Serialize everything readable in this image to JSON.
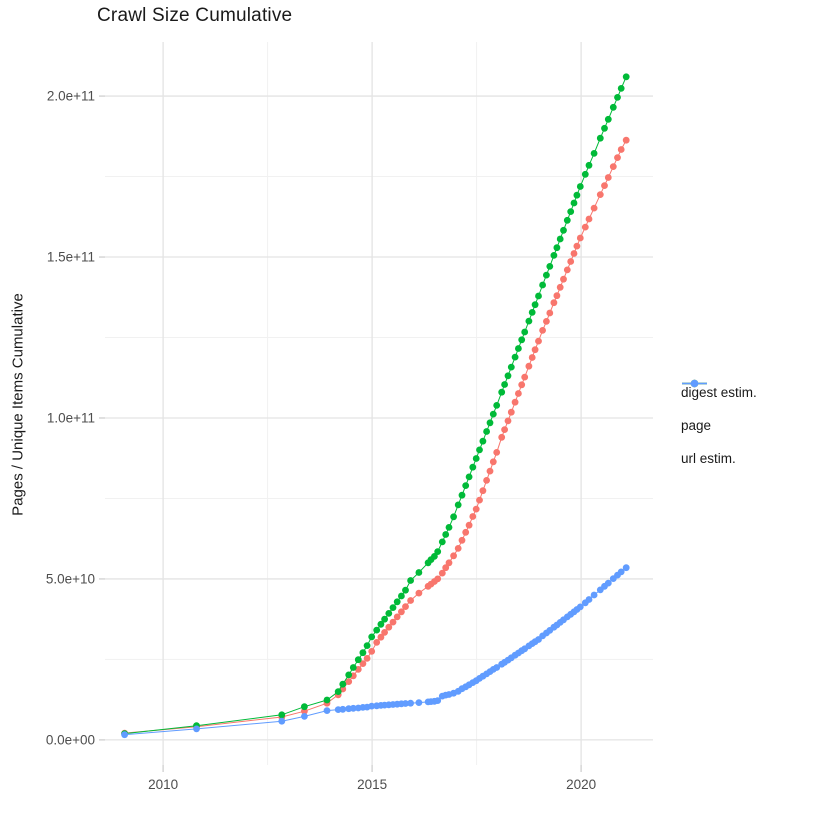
{
  "chart_data": {
    "type": "scatter",
    "title": "Crawl Size Cumulative",
    "xlabel": "",
    "ylabel": "Pages / Unique Items Cumulative",
    "legend_position": "right",
    "grid": {
      "major_color": "#e4e4e4",
      "minor_color": "#f1f1f1",
      "tick_color": "#cfcfcf",
      "axis_text_color": "#4d4d4d"
    },
    "value_scale_note": "values stored in billions (1e9 items)",
    "xlim": [
      2008.61,
      2021.72
    ],
    "ylim": [
      -7.8,
      216.8
    ],
    "x_ticks": [
      {
        "v": 2010,
        "label": "2010"
      },
      {
        "v": 2015,
        "label": "2015"
      },
      {
        "v": 2020,
        "label": "2020"
      }
    ],
    "x_minor": [
      2012.5,
      2017.5
    ],
    "y_ticks": [
      {
        "v": 0,
        "label": "0.0e+00"
      },
      {
        "v": 50,
        "label": "5.0e+10"
      },
      {
        "v": 100,
        "label": "1.0e+11"
      },
      {
        "v": 150,
        "label": "1.5e+11"
      },
      {
        "v": 200,
        "label": "2.0e+11"
      }
    ],
    "y_minor": [
      25,
      75,
      125,
      175
    ],
    "x": [
      2009.08,
      2010.8,
      2012.84,
      2013.38,
      2013.92,
      2014.19,
      2014.3,
      2014.44,
      2014.55,
      2014.67,
      2014.78,
      2014.88,
      2014.99,
      2015.11,
      2015.21,
      2015.3,
      2015.4,
      2015.5,
      2015.6,
      2015.7,
      2015.8,
      2015.92,
      2016.12,
      2016.34,
      2016.41,
      2016.49,
      2016.57,
      2016.68,
      2016.76,
      2016.84,
      2016.95,
      2017.06,
      2017.15,
      2017.24,
      2017.32,
      2017.41,
      2017.49,
      2017.57,
      2017.65,
      2017.74,
      2017.82,
      2017.9,
      2017.98,
      2018.1,
      2018.17,
      2018.25,
      2018.33,
      2018.42,
      2018.5,
      2018.58,
      2018.65,
      2018.75,
      2018.83,
      2018.9,
      2018.98,
      2019.08,
      2019.17,
      2019.25,
      2019.35,
      2019.42,
      2019.5,
      2019.58,
      2019.67,
      2019.75,
      2019.83,
      2019.9,
      2019.98,
      2020.1,
      2020.19,
      2020.31,
      2020.46,
      2020.56,
      2020.65,
      2020.77,
      2020.87,
      2020.96,
      2021.08
    ],
    "series": [
      {
        "key": "digest",
        "label": "digest estim.",
        "color": "#F8766D",
        "values": [
          2.1,
          4.1,
          7.1,
          8.9,
          11.4,
          14.0,
          15.8,
          18.1,
          19.9,
          21.9,
          23.7,
          25.3,
          27.5,
          30.3,
          31.9,
          33.4,
          35.0,
          36.6,
          38.2,
          39.8,
          41.4,
          43.3,
          45.6,
          47.7,
          48.4,
          49.2,
          50.0,
          51.8,
          53.5,
          55.0,
          57.2,
          59.5,
          62.0,
          64.5,
          66.7,
          69.4,
          71.7,
          74.5,
          77.4,
          80.6,
          83.5,
          86.4,
          89.3,
          94.0,
          96.4,
          99.1,
          101.8,
          104.9,
          107.6,
          110.3,
          112.7,
          116.1,
          118.8,
          121.2,
          123.9,
          127.2,
          130.0,
          132.6,
          135.8,
          138.0,
          140.6,
          143.1,
          146.0,
          148.6,
          151.1,
          153.4,
          155.9,
          159.3,
          161.8,
          165.2,
          169.4,
          172.2,
          174.7,
          178.1,
          180.9,
          183.4,
          186.3
        ]
      },
      {
        "key": "page",
        "label": "page",
        "color": "#00BA38",
        "values": [
          1.95,
          4.4,
          7.8,
          10.3,
          12.4,
          15.0,
          17.3,
          20.2,
          22.5,
          24.9,
          27.1,
          29.3,
          32.0,
          34.1,
          35.9,
          37.5,
          39.3,
          41.1,
          42.9,
          44.7,
          46.5,
          49.5,
          52.0,
          55.0,
          56.0,
          57.0,
          58.5,
          61.5,
          63.8,
          66.0,
          69.3,
          73.0,
          76.0,
          79.0,
          81.7,
          84.7,
          87.4,
          90.1,
          92.8,
          95.8,
          98.5,
          101.2,
          103.9,
          108.0,
          110.4,
          113.1,
          115.8,
          118.9,
          121.6,
          124.3,
          126.7,
          130.1,
          132.8,
          135.2,
          137.9,
          141.3,
          144.4,
          147.1,
          150.5,
          152.9,
          155.6,
          158.3,
          161.4,
          164.1,
          166.8,
          169.2,
          171.9,
          175.7,
          178.5,
          182.2,
          186.9,
          190.0,
          192.8,
          196.5,
          199.6,
          202.4,
          206.0
        ]
      },
      {
        "key": "url",
        "label": "url estim.",
        "color": "#619CFF",
        "values": [
          1.6,
          3.4,
          5.8,
          7.3,
          9.1,
          9.4,
          9.5,
          9.7,
          9.8,
          9.9,
          10.1,
          10.2,
          10.5,
          10.6,
          10.7,
          10.8,
          10.9,
          11.0,
          11.1,
          11.2,
          11.3,
          11.4,
          11.6,
          11.8,
          11.9,
          12.0,
          12.2,
          13.6,
          13.9,
          14.1,
          14.5,
          15.1,
          15.9,
          16.5,
          17.1,
          17.8,
          18.4,
          19.1,
          19.8,
          20.5,
          21.2,
          21.9,
          22.5,
          23.5,
          24.1,
          24.8,
          25.5,
          26.3,
          27.0,
          27.7,
          28.3,
          29.2,
          29.9,
          30.5,
          31.2,
          32.3,
          33.2,
          34.0,
          35.0,
          35.7,
          36.5,
          37.3,
          38.2,
          39.0,
          39.8,
          40.5,
          41.3,
          42.6,
          43.6,
          45.0,
          46.6,
          47.7,
          48.7,
          50.1,
          51.2,
          52.2,
          53.5
        ]
      }
    ]
  }
}
